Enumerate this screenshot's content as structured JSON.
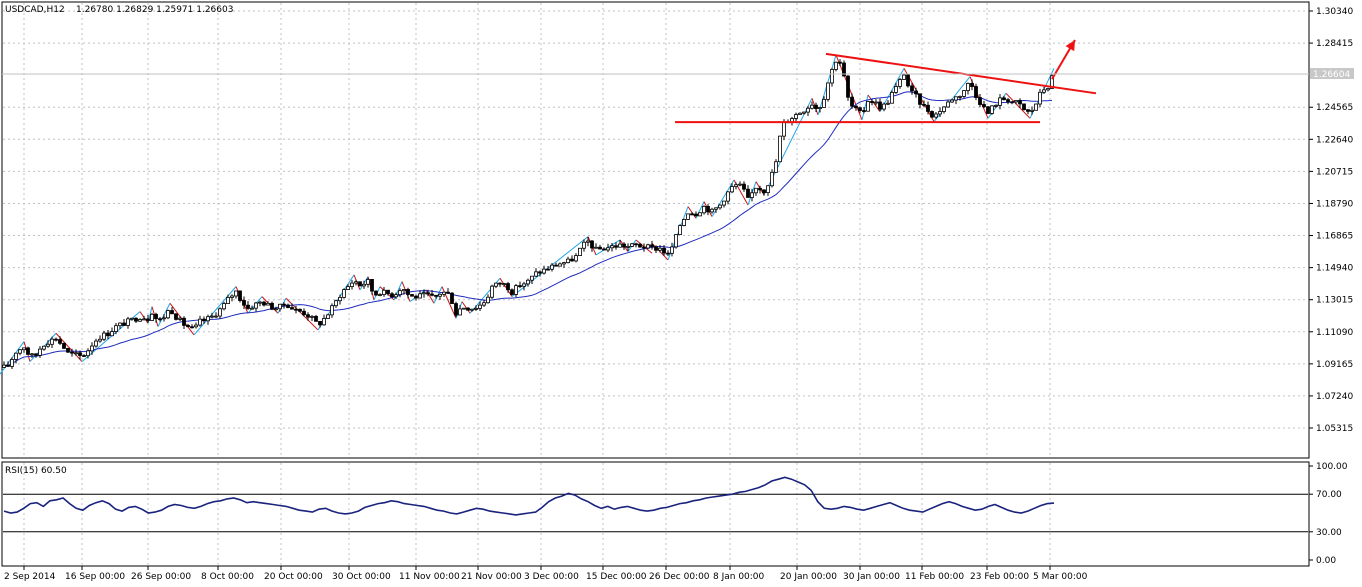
{
  "header": {
    "symbol": "USDCAD,H12",
    "quote": "1.26780 1.26829 1.25971 1.26603"
  },
  "current_price_label": "1.26604",
  "rsi_label": "RSI(15) 60.50",
  "colors": {
    "background": "#ffffff",
    "grid": "#c0c0c8",
    "candle": "#000000",
    "ma_line": "#1f2dbf",
    "zigzag_up": "#1fa4e8",
    "zigzag_down": "#cc1111",
    "trendline": "#ee1111",
    "rsi_line": "#1a237e"
  },
  "chart_data": [
    {
      "type": "candlestick",
      "title": "USDCAD,H12",
      "price_axis_ticks": [
        "1.30340",
        "1.28415",
        "1.24565",
        "1.22640",
        "1.20715",
        "1.18790",
        "1.16865",
        "1.14940",
        "1.13015",
        "1.11090",
        "1.09165",
        "1.07240",
        "1.05315"
      ],
      "ylim": [
        1.038,
        1.312
      ],
      "time_axis_labels": [
        "2 Sep 2014",
        "16 Sep 00:00",
        "26 Sep 00:00",
        "8 Oct 00:00",
        "20 Oct 00:00",
        "30 Oct 00:00",
        "11 Nov 00:00",
        "21 Nov 00:00",
        "3 Dec 00:00",
        "15 Dec 00:00",
        "26 Dec 00:00",
        "8 Jan 00:00",
        "20 Jan 00:00",
        "30 Jan 00:00",
        "11 Feb 00:00",
        "23 Feb 00:00",
        "5 Mar 00:00"
      ],
      "close_path": [
        [
          0,
          1.0885
        ],
        [
          8,
          1.0905
        ],
        [
          16,
          1.099
        ],
        [
          24,
          1.102
        ],
        [
          30,
          1.096
        ],
        [
          36,
          1.097
        ],
        [
          42,
          1.103
        ],
        [
          48,
          1.105
        ],
        [
          56,
          1.107
        ],
        [
          62,
          1.103
        ],
        [
          68,
          1.098
        ],
        [
          76,
          1.097
        ],
        [
          82,
          1.096
        ],
        [
          88,
          1.1
        ],
        [
          94,
          1.105
        ],
        [
          100,
          1.108
        ],
        [
          108,
          1.11
        ],
        [
          116,
          1.114
        ],
        [
          124,
          1.116
        ],
        [
          132,
          1.118
        ],
        [
          140,
          1.12
        ],
        [
          148,
          1.119
        ],
        [
          152,
          1.123
        ],
        [
          158,
          1.117
        ],
        [
          164,
          1.12
        ],
        [
          170,
          1.125
        ],
        [
          176,
          1.12
        ],
        [
          182,
          1.116
        ],
        [
          188,
          1.114
        ],
        [
          194,
          1.112
        ],
        [
          200,
          1.117
        ],
        [
          206,
          1.118
        ],
        [
          212,
          1.12
        ],
        [
          218,
          1.123
        ],
        [
          224,
          1.127
        ],
        [
          230,
          1.132
        ],
        [
          236,
          1.135
        ],
        [
          242,
          1.129
        ],
        [
          248,
          1.125
        ],
        [
          254,
          1.127
        ],
        [
          262,
          1.129
        ],
        [
          270,
          1.126
        ],
        [
          278,
          1.125
        ],
        [
          286,
          1.128
        ],
        [
          294,
          1.124
        ],
        [
          302,
          1.123
        ],
        [
          310,
          1.12
        ],
        [
          318,
          1.115
        ],
        [
          326,
          1.12
        ],
        [
          334,
          1.127
        ],
        [
          342,
          1.135
        ],
        [
          348,
          1.138
        ],
        [
          354,
          1.142
        ],
        [
          360,
          1.139
        ],
        [
          368,
          1.141
        ],
        [
          374,
          1.133
        ],
        [
          380,
          1.135
        ],
        [
          386,
          1.134
        ],
        [
          394,
          1.133
        ],
        [
          402,
          1.138
        ],
        [
          410,
          1.132
        ],
        [
          418,
          1.132
        ],
        [
          426,
          1.133
        ],
        [
          434,
          1.131
        ],
        [
          442,
          1.135
        ],
        [
          450,
          1.133
        ],
        [
          456,
          1.122
        ],
        [
          462,
          1.126
        ],
        [
          470,
          1.125
        ],
        [
          478,
          1.126
        ],
        [
          486,
          1.13
        ],
        [
          492,
          1.138
        ],
        [
          500,
          1.14
        ],
        [
          506,
          1.139
        ],
        [
          512,
          1.135
        ],
        [
          520,
          1.139
        ],
        [
          528,
          1.141
        ],
        [
          536,
          1.146
        ],
        [
          544,
          1.148
        ],
        [
          552,
          1.15
        ],
        [
          560,
          1.152
        ],
        [
          568,
          1.153
        ],
        [
          576,
          1.156
        ],
        [
          582,
          1.162
        ],
        [
          588,
          1.165
        ],
        [
          596,
          1.16
        ],
        [
          604,
          1.161
        ],
        [
          612,
          1.162
        ],
        [
          620,
          1.163
        ],
        [
          628,
          1.162
        ],
        [
          636,
          1.163
        ],
        [
          644,
          1.162
        ],
        [
          652,
          1.161
        ],
        [
          660,
          1.161
        ],
        [
          668,
          1.157
        ],
        [
          674,
          1.164
        ],
        [
          680,
          1.175
        ],
        [
          688,
          1.183
        ],
        [
          696,
          1.182
        ],
        [
          704,
          1.186
        ],
        [
          712,
          1.183
        ],
        [
          720,
          1.187
        ],
        [
          726,
          1.193
        ],
        [
          734,
          1.199
        ],
        [
          742,
          1.198
        ],
        [
          748,
          1.19
        ],
        [
          756,
          1.198
        ],
        [
          764,
          1.196
        ],
        [
          770,
          1.202
        ],
        [
          776,
          1.213
        ],
        [
          782,
          1.235
        ],
        [
          790,
          1.239
        ],
        [
          798,
          1.242
        ],
        [
          806,
          1.245
        ],
        [
          812,
          1.248
        ],
        [
          818,
          1.244
        ],
        [
          824,
          1.252
        ],
        [
          830,
          1.265
        ],
        [
          836,
          1.274
        ],
        [
          842,
          1.272
        ],
        [
          846,
          1.255
        ],
        [
          850,
          1.247
        ],
        [
          856,
          1.244
        ],
        [
          862,
          1.241
        ],
        [
          868,
          1.25
        ],
        [
          874,
          1.249
        ],
        [
          880,
          1.246
        ],
        [
          886,
          1.247
        ],
        [
          892,
          1.254
        ],
        [
          898,
          1.259
        ],
        [
          904,
          1.266
        ],
        [
          910,
          1.255
        ],
        [
          916,
          1.252
        ],
        [
          922,
          1.247
        ],
        [
          928,
          1.244
        ],
        [
          934,
          1.24
        ],
        [
          940,
          1.244
        ],
        [
          946,
          1.247
        ],
        [
          952,
          1.251
        ],
        [
          958,
          1.252
        ],
        [
          964,
          1.256
        ],
        [
          970,
          1.261
        ],
        [
          976,
          1.253
        ],
        [
          982,
          1.247
        ],
        [
          988,
          1.242
        ],
        [
          994,
          1.247
        ],
        [
          1000,
          1.25
        ],
        [
          1006,
          1.251
        ],
        [
          1012,
          1.249
        ],
        [
          1018,
          1.248
        ],
        [
          1024,
          1.244
        ],
        [
          1030,
          1.242
        ],
        [
          1036,
          1.248
        ],
        [
          1042,
          1.256
        ],
        [
          1048,
          1.258
        ],
        [
          1054,
          1.266
        ]
      ],
      "support_line": {
        "from_x": 675,
        "to_x": 1040,
        "price": 1.2367
      },
      "resistance_line": {
        "from": [
          826,
          1.2777
        ],
        "to": [
          1096,
          1.254
        ]
      },
      "breakout_arrow": {
        "from": [
          1052,
          1.2625
        ],
        "to": [
          1075,
          1.286
        ]
      }
    },
    {
      "type": "line",
      "title": "RSI(15) 60.50",
      "ylim": [
        0,
        100
      ],
      "level_ticks": [
        "100.00",
        "70.00",
        "30.00",
        "0.00"
      ],
      "levels": [
        70,
        30
      ],
      "values": [
        52,
        50,
        51,
        55,
        60,
        61,
        57,
        63,
        64,
        66,
        60,
        55,
        53,
        58,
        61,
        63,
        60,
        54,
        52,
        56,
        57,
        54,
        50,
        51,
        53,
        57,
        59,
        58,
        56,
        55,
        57,
        60,
        62,
        63,
        65,
        66,
        64,
        61,
        62,
        61,
        60,
        59,
        58,
        57,
        55,
        53,
        52,
        51,
        54,
        55,
        52,
        50,
        49,
        50,
        52,
        56,
        58,
        60,
        61,
        63,
        62,
        60,
        59,
        58,
        57,
        55,
        53,
        52,
        50,
        49,
        51,
        53,
        55,
        54,
        52,
        51,
        50,
        49,
        48,
        49,
        50,
        51,
        56,
        62,
        66,
        68,
        71,
        69,
        65,
        62,
        58,
        55,
        57,
        54,
        56,
        57,
        55,
        53,
        52,
        53,
        55,
        56,
        58,
        60,
        61,
        63,
        64,
        66,
        67,
        68,
        69,
        70,
        72,
        73,
        75,
        77,
        80,
        84,
        86,
        88,
        86,
        83,
        80,
        74,
        62,
        55,
        54,
        55,
        57,
        56,
        54,
        53,
        55,
        57,
        59,
        61,
        58,
        55,
        53,
        52,
        51,
        54,
        57,
        60,
        62,
        60,
        57,
        55,
        53,
        54,
        57,
        59,
        56,
        53,
        51,
        50,
        52,
        55,
        58,
        60,
        60.5
      ]
    }
  ]
}
